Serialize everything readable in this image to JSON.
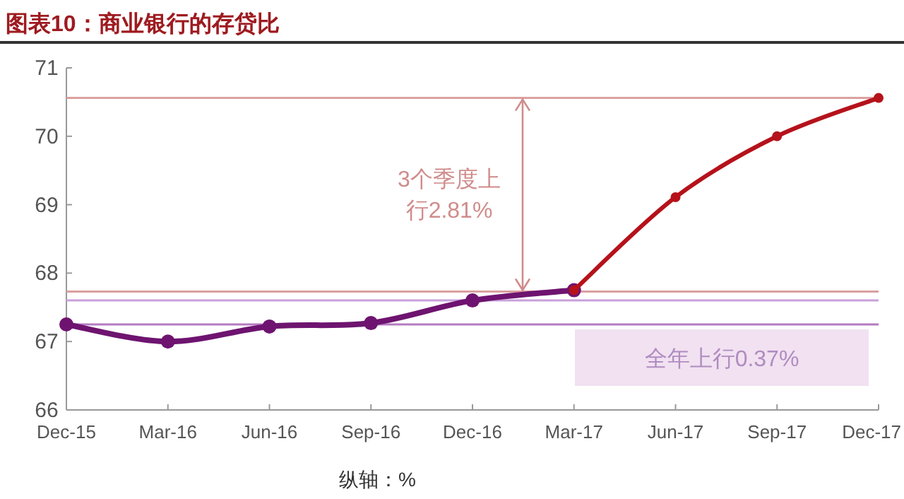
{
  "chart_data": {
    "type": "line",
    "title": "图表10：商业银行的存贷比",
    "categories": [
      "Dec-15",
      "Mar-16",
      "Jun-16",
      "Sep-16",
      "Dec-16",
      "Mar-17",
      "Jun-17",
      "Sep-17",
      "Dec-17"
    ],
    "series": [
      {
        "color": "#6e1470",
        "values": [
          67.25,
          67.0,
          67.22,
          67.27,
          67.6,
          67.75,
          null,
          null,
          null
        ]
      },
      {
        "color": "#b5121b",
        "values": [
          null,
          null,
          null,
          null,
          null,
          67.75,
          69.11,
          70.0,
          70.56
        ]
      }
    ],
    "ylim": [
      66,
      71
    ],
    "yticks": [
      66,
      67,
      68,
      69,
      70,
      71
    ],
    "marker": "circle",
    "line_style": "solid",
    "grid": false,
    "ref_lines": [
      {
        "axis": "y",
        "value": 70.56,
        "color": "#dba0a0"
      },
      {
        "axis": "y",
        "value": 67.73,
        "color": "#dba0a0"
      },
      {
        "axis": "y",
        "value": 67.6,
        "color": "#c9a0dc"
      },
      {
        "axis": "y",
        "value": 67.25,
        "color": "#b57bc0"
      }
    ],
    "annotations": [
      "3个季度上行2.81%",
      "全年上行0.37%",
      "纵轴：%"
    ]
  }
}
